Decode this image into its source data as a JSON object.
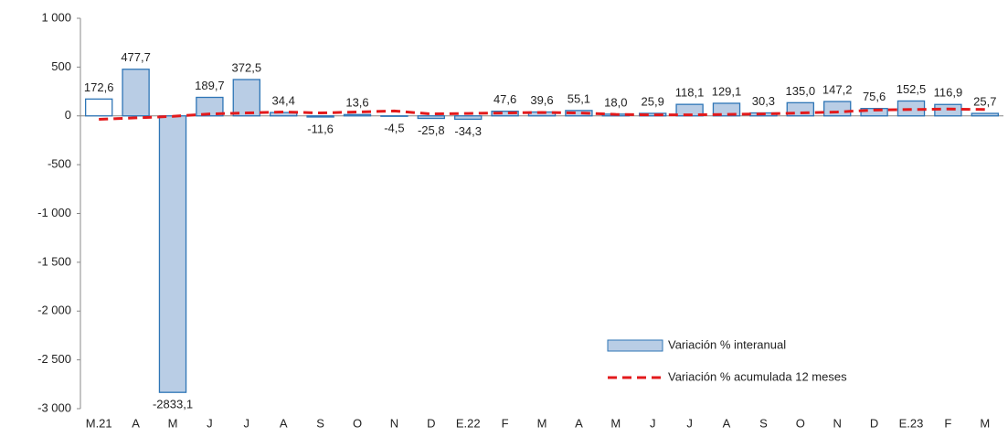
{
  "chart_data": {
    "type": "bar",
    "categories": [
      "M.21",
      "A",
      "M",
      "J",
      "J",
      "A",
      "S",
      "O",
      "N",
      "D",
      "E.22",
      "F",
      "M",
      "A",
      "M",
      "J",
      "J",
      "A",
      "S",
      "O",
      "N",
      "D",
      "E.23",
      "F",
      "M"
    ],
    "series": [
      {
        "name": "Variación % interanual",
        "type": "bar",
        "color": "#b9cde5",
        "edge": "#2e75b6",
        "colors": [
          "#ffffff",
          "#b9cde5",
          "#b9cde5",
          "#b9cde5",
          "#b9cde5",
          "#b9cde5",
          "#b9cde5",
          "#b9cde5",
          "#b9cde5",
          "#b9cde5",
          "#b9cde5",
          "#b9cde5",
          "#b9cde5",
          "#b9cde5",
          "#b9cde5",
          "#b9cde5",
          "#b9cde5",
          "#b9cde5",
          "#b9cde5",
          "#b9cde5",
          "#b9cde5",
          "#b9cde5",
          "#b9cde5",
          "#b9cde5",
          "#b9cde5"
        ],
        "values": [
          172.6,
          477.7,
          -2833.1,
          189.7,
          372.5,
          34.4,
          -11.6,
          13.6,
          -4.5,
          -25.8,
          -34.3,
          47.6,
          39.6,
          55.1,
          18.0,
          25.9,
          118.1,
          129.1,
          30.3,
          135.0,
          147.2,
          75.6,
          152.5,
          116.9,
          25.7
        ],
        "value_labels": [
          "172,6",
          "477,7",
          "-2833,1",
          "189,7",
          "372,5",
          "34,4",
          "-11,6",
          "13,6",
          "-4,5",
          "-25,8",
          "-34,3",
          "47,6",
          "39,6",
          "55,1",
          "18,0",
          "25,9",
          "118,1",
          "129,1",
          "30,3",
          "135,0",
          "147,2",
          "75,6",
          "152,5",
          "116,9",
          "25,7"
        ]
      },
      {
        "name": "Variación % acumulada 12 meses",
        "type": "line",
        "color": "#e31a1c",
        "values": [
          -35,
          -20,
          -5,
          20,
          30,
          40,
          30,
          40,
          50,
          20,
          25,
          30,
          35,
          30,
          15,
          10,
          10,
          15,
          20,
          30,
          40,
          60,
          65,
          70,
          65
        ]
      }
    ],
    "ylim": [
      -3000,
      1000
    ],
    "yticks": [
      {
        "value": 1000,
        "label": "1 000"
      },
      500,
      0,
      -500,
      {
        "value": -1000,
        "label": "-1 000"
      },
      {
        "value": -1500,
        "label": "-1 500"
      },
      {
        "value": -2000,
        "label": "-2 000"
      },
      {
        "value": -2500,
        "label": "-2 500"
      },
      {
        "value": -3000,
        "label": "-3 000"
      }
    ]
  }
}
